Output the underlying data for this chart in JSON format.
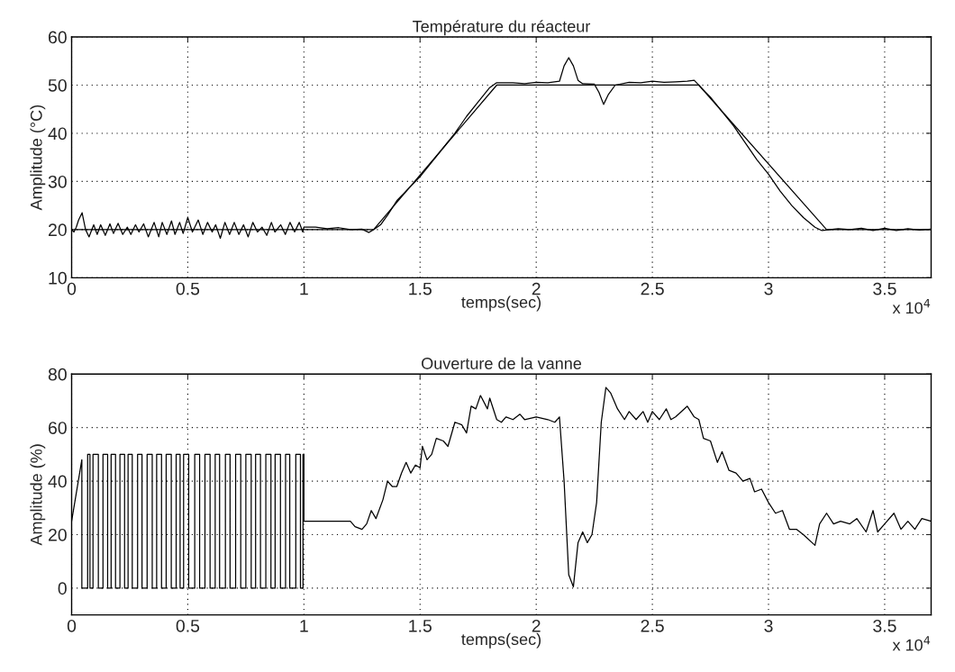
{
  "chart_data": [
    {
      "type": "line",
      "title": "Température du réacteur",
      "xlabel": "temps(sec)",
      "ylabel": "Amplitude (°C)",
      "annotations": [
        "x 10$^{4}$"
      ],
      "xlim": [
        0,
        3.7
      ],
      "xticks": [
        0,
        0.5,
        1,
        1.5,
        2,
        2.5,
        3,
        3.5
      ],
      "ylim": [
        10,
        60
      ],
      "yticks": [
        10,
        20,
        30,
        40,
        50,
        60
      ],
      "grid": true,
      "line_style": "solid",
      "marker": "none",
      "series": [
        {
          "color": "#000000",
          "x": [
            0,
            1.3,
            1.83,
            2.7,
            3.25,
            3.7
          ],
          "values": [
            20,
            20,
            50,
            50,
            20,
            20
          ]
        },
        {
          "color": "#000000",
          "x": [
            0,
            0.01,
            0.02,
            0.03,
            0.045,
            0.06,
            0.075,
            0.095,
            0.11,
            0.125,
            0.145,
            0.165,
            0.18,
            0.2,
            0.22,
            0.24,
            0.255,
            0.275,
            0.29,
            0.31,
            0.33,
            0.355,
            0.375,
            0.39,
            0.41,
            0.43,
            0.445,
            0.465,
            0.48,
            0.5,
            0.52,
            0.545,
            0.565,
            0.585,
            0.605,
            0.62,
            0.64,
            0.66,
            0.68,
            0.7,
            0.72,
            0.74,
            0.76,
            0.78,
            0.8,
            0.82,
            0.84,
            0.86,
            0.875,
            0.9,
            0.92,
            0.94,
            0.96,
            0.98,
            0.995,
            1.0,
            1.05,
            1.1,
            1.15,
            1.2,
            1.25,
            1.28,
            1.3,
            1.33,
            1.36,
            1.4,
            1.45,
            1.5,
            1.55,
            1.6,
            1.65,
            1.7,
            1.75,
            1.8,
            1.83,
            1.9,
            1.95,
            2.0,
            2.05,
            2.1,
            2.12,
            2.14,
            2.16,
            2.18,
            2.2,
            2.25,
            2.27,
            2.29,
            2.31,
            2.34,
            2.4,
            2.45,
            2.5,
            2.55,
            2.6,
            2.65,
            2.68,
            2.72,
            2.75,
            2.8,
            2.85,
            2.9,
            2.95,
            3.0,
            3.05,
            3.1,
            3.15,
            3.2,
            3.23,
            3.3,
            3.35,
            3.4,
            3.45,
            3.5,
            3.55,
            3.6,
            3.65,
            3.7
          ],
          "values": [
            20,
            19.5,
            20.5,
            22,
            23.5,
            20,
            18.5,
            21,
            19,
            21,
            18.8,
            21.2,
            19.2,
            21.3,
            19,
            20.5,
            19,
            21,
            19.5,
            21.2,
            18.5,
            21.5,
            18.5,
            21.5,
            19,
            21.8,
            19,
            21.5,
            19.2,
            22.5,
            19.5,
            22,
            19,
            21.5,
            19.5,
            21,
            18.2,
            21.5,
            19,
            21.5,
            19,
            21,
            18.5,
            21.5,
            19.5,
            20.5,
            18.8,
            21.5,
            19.5,
            21,
            19,
            21.5,
            19.5,
            21.5,
            19.5,
            20.5,
            20.5,
            20.2,
            20.4,
            20,
            20.1,
            19.4,
            20,
            21,
            23,
            26,
            28.5,
            31,
            34,
            37,
            40,
            43.5,
            46.5,
            49.5,
            50.5,
            50.5,
            50.3,
            50.6,
            50.5,
            50.8,
            54,
            55.7,
            54,
            51,
            50.3,
            50.2,
            48.5,
            46,
            48,
            50,
            50.6,
            50.5,
            50.8,
            50.6,
            50.7,
            50.8,
            51,
            49,
            47.5,
            44.5,
            41.5,
            38,
            34.5,
            31.5,
            28,
            25,
            22.5,
            20.5,
            19.8,
            20.2,
            20,
            20.3,
            19.8,
            20.3,
            19.8,
            20.2,
            19.9,
            20.1
          ]
        }
      ]
    },
    {
      "type": "line",
      "title": "Ouverture de la vanne",
      "xlabel": "temps(sec)",
      "ylabel": "Amplitude (%)",
      "annotations": [
        "x 10$^{4}$"
      ],
      "xlim": [
        0,
        3.7
      ],
      "xticks": [
        0,
        0.5,
        1,
        1.5,
        2,
        2.5,
        3,
        3.5
      ],
      "ylim": [
        -10,
        80
      ],
      "yticks": [
        0,
        20,
        40,
        60,
        80
      ],
      "grid": true,
      "line_style": "solid",
      "marker": "none",
      "series": [
        {
          "color": "#000000",
          "x": [
            0,
            0.044,
            0.044,
            0.069,
            0.069,
            0.079,
            0.079,
            0.092,
            0.092,
            0.115,
            0.115,
            0.135,
            0.135,
            0.155,
            0.155,
            0.17,
            0.17,
            0.189,
            0.189,
            0.208,
            0.208,
            0.228,
            0.228,
            0.243,
            0.243,
            0.261,
            0.261,
            0.284,
            0.284,
            0.303,
            0.303,
            0.325,
            0.325,
            0.347,
            0.347,
            0.366,
            0.366,
            0.387,
            0.387,
            0.407,
            0.407,
            0.429,
            0.429,
            0.45,
            0.45,
            0.467,
            0.467,
            0.482,
            0.482,
            0.504,
            0.504,
            0.53,
            0.53,
            0.551,
            0.551,
            0.574,
            0.574,
            0.596,
            0.596,
            0.618,
            0.618,
            0.637,
            0.637,
            0.662,
            0.662,
            0.682,
            0.682,
            0.706,
            0.706,
            0.728,
            0.728,
            0.75,
            0.75,
            0.773,
            0.773,
            0.792,
            0.792,
            0.813,
            0.813,
            0.836,
            0.836,
            0.858,
            0.858,
            0.876,
            0.876,
            0.899,
            0.899,
            0.921,
            0.921,
            0.939,
            0.939,
            0.965,
            0.965,
            0.985,
            0.985,
            0.996,
            0.996,
            1.0,
            1.0,
            1.2,
            1.22,
            1.25,
            1.27,
            1.29,
            1.31,
            1.34,
            1.36,
            1.38,
            1.4,
            1.42,
            1.44,
            1.46,
            1.48,
            1.5,
            1.51,
            1.53,
            1.55,
            1.57,
            1.6,
            1.62,
            1.65,
            1.68,
            1.7,
            1.72,
            1.74,
            1.76,
            1.79,
            1.8,
            1.83,
            1.85,
            1.87,
            1.9,
            1.93,
            1.95,
            2.0,
            2.05,
            2.08,
            2.1,
            2.12,
            2.14,
            2.16,
            2.18,
            2.2,
            2.22,
            2.24,
            2.26,
            2.28,
            2.3,
            2.32,
            2.35,
            2.38,
            2.4,
            2.43,
            2.46,
            2.48,
            2.5,
            2.53,
            2.56,
            2.58,
            2.6,
            2.65,
            2.68,
            2.7,
            2.72,
            2.75,
            2.78,
            2.8,
            2.83,
            2.86,
            2.89,
            2.92,
            2.94,
            2.97,
            3.0,
            3.03,
            3.06,
            3.09,
            3.12,
            3.15,
            3.2,
            3.22,
            3.25,
            3.28,
            3.31,
            3.35,
            3.38,
            3.42,
            3.45,
            3.47,
            3.5,
            3.54,
            3.57,
            3.6,
            3.63,
            3.66,
            3.7
          ],
          "values": [
            25,
            48,
            0,
            0,
            50,
            50,
            0,
            0,
            50,
            50,
            0,
            0,
            50,
            50,
            0,
            0,
            50,
            50,
            0,
            0,
            50,
            50,
            0,
            0,
            50,
            50,
            0,
            0,
            50,
            50,
            0,
            0,
            50,
            50,
            0,
            0,
            50,
            50,
            0,
            0,
            50,
            50,
            0,
            0,
            50,
            50,
            0,
            0,
            50,
            50,
            0,
            0,
            50,
            50,
            0,
            0,
            50,
            50,
            0,
            0,
            50,
            50,
            0,
            0,
            50,
            50,
            0,
            0,
            50,
            50,
            0,
            0,
            50,
            50,
            0,
            0,
            50,
            50,
            0,
            0,
            50,
            50,
            0,
            0,
            50,
            50,
            0,
            0,
            50,
            50,
            0,
            0,
            50,
            50,
            0,
            0,
            50,
            50,
            25,
            25,
            23,
            22,
            24,
            29,
            26,
            33,
            40,
            38,
            38,
            43,
            47,
            43,
            46,
            45,
            53,
            48,
            50,
            56,
            55,
            53,
            62,
            61,
            58,
            68,
            67,
            72,
            67,
            71,
            63,
            62,
            64,
            63,
            65,
            63,
            64,
            63,
            62,
            64,
            40,
            5,
            0.5,
            17,
            21,
            17,
            20,
            32,
            62,
            75,
            73,
            67,
            63,
            66,
            63,
            66,
            62,
            66,
            63,
            67,
            63,
            64,
            68,
            64,
            63,
            56,
            55,
            47,
            51,
            44,
            43,
            40,
            41,
            36,
            37,
            32,
            28,
            29,
            22,
            22,
            20,
            16,
            24,
            28,
            24,
            25,
            24,
            26,
            21,
            29,
            21,
            24,
            28,
            22,
            25,
            22,
            26,
            25
          ]
        }
      ]
    }
  ]
}
